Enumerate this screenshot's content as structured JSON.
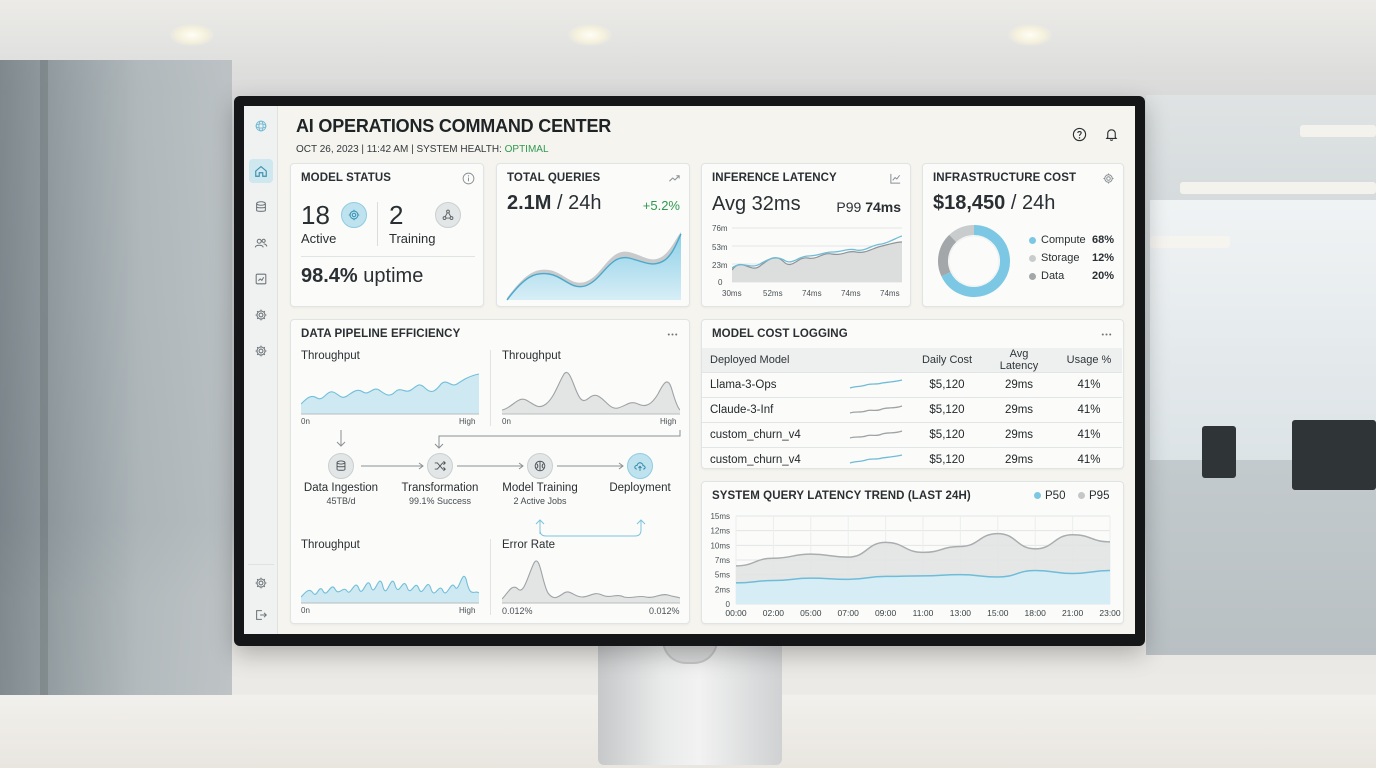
{
  "header": {
    "title": "AI OPERATIONS COMMAND CENTER",
    "subtitle_prefix": "OCT 26, 2023 | 11:42 AM | SYSTEM HEALTH: ",
    "health_status": "OPTIMAL"
  },
  "sidebar": {
    "items": [
      {
        "icon": "home-icon",
        "active": true
      },
      {
        "icon": "database-icon",
        "active": false
      },
      {
        "icon": "users-icon",
        "active": false
      },
      {
        "icon": "report-icon",
        "active": false
      },
      {
        "icon": "gear-icon",
        "active": false
      },
      {
        "icon": "gear-icon",
        "active": false
      }
    ],
    "bottom": [
      {
        "icon": "gear-icon"
      },
      {
        "icon": "logout-icon"
      }
    ]
  },
  "model_status": {
    "title": "MODEL STATUS",
    "active_count": "18",
    "active_label": "Active",
    "training_count": "2",
    "training_label": "Training",
    "uptime_value": "98.4%",
    "uptime_label": "uptime"
  },
  "total_queries": {
    "title": "TOTAL QUERIES",
    "value": "2.1M",
    "period": "/ 24h",
    "change": "+5.2%"
  },
  "inference_latency": {
    "title": "INFERENCE LATENCY",
    "avg": "Avg 32ms",
    "p99_label": "P99",
    "p99_value": "74ms",
    "y_ticks": [
      "76m",
      "53m",
      "23m",
      "0"
    ],
    "x_ticks": [
      "30ms",
      "52ms",
      "74ms",
      "74ms",
      "74ms"
    ]
  },
  "infrastructure_cost": {
    "title": "INFRASTRUCTURE COST",
    "value": "$18,450",
    "period": "/ 24h",
    "legend": [
      {
        "label": "Compute",
        "value": "68%",
        "pct": 68,
        "color": "#7cc8e4"
      },
      {
        "label": "Storage",
        "value": "12%",
        "pct": 12,
        "color": "#c9cccd"
      },
      {
        "label": "Data",
        "value": "20%",
        "pct": 20,
        "color": "#a3a7a9"
      }
    ]
  },
  "pipeline": {
    "title": "DATA PIPELINE EFFICIENCY",
    "mini_charts": [
      {
        "label": "Throughput",
        "x_start": "0n",
        "x_end": "High"
      },
      {
        "label": "Throughput",
        "x_start": "0n",
        "x_end": "High"
      },
      {
        "label": "Throughput",
        "x_start": "0n",
        "x_end": "High"
      },
      {
        "label": "Error Rate",
        "x_start": "0.012%",
        "x_end": "0.012%"
      }
    ],
    "stages": [
      {
        "name": "Data Ingestion",
        "detail": "45TB/d",
        "icon": "database-icon"
      },
      {
        "name": "Transformation",
        "detail": "99.1% Success",
        "icon": "shuffle-icon"
      },
      {
        "name": "Model Training",
        "detail": "2 Active Jobs",
        "icon": "brain-icon"
      },
      {
        "name": "Deployment",
        "detail": "",
        "icon": "cloud-upload-icon"
      }
    ]
  },
  "cost_logging": {
    "title": "MODEL COST LOGGING",
    "columns": [
      "Deployed Model",
      "Daily Cost",
      "Avg Latency",
      "Usage %"
    ],
    "rows": [
      {
        "model": "Llama-3-Ops",
        "cost": "$5,120",
        "latency": "29ms",
        "usage": "41%",
        "spark": "blue"
      },
      {
        "model": "Claude-3-Inf",
        "cost": "$5,120",
        "latency": "29ms",
        "usage": "41%",
        "spark": "gray"
      },
      {
        "model": "custom_churn_v4",
        "cost": "$5,120",
        "latency": "29ms",
        "usage": "41%",
        "spark": "gray"
      },
      {
        "model": "custom_churn_v4",
        "cost": "$5,120",
        "latency": "29ms",
        "usage": "41%",
        "spark": "blue"
      }
    ]
  },
  "latency_trend": {
    "title": "SYSTEM QUERY LATENCY TREND (LAST 24H)",
    "legend": [
      {
        "label": "P50",
        "color": "#7cc8e4"
      },
      {
        "label": "P95",
        "color": "#c4c7c8"
      }
    ]
  },
  "chart_data": {
    "type": "line",
    "title": "SYSTEM QUERY LATENCY TREND (LAST 24H)",
    "x": [
      "00:00",
      "02:00",
      "05:00",
      "07:00",
      "09:00",
      "11:00",
      "13:00",
      "15:00",
      "18:00",
      "21:00",
      "23:00"
    ],
    "y_ticks": [
      "15ms",
      "12ms",
      "10ms",
      "7ms",
      "5ms",
      "2ms",
      "0"
    ],
    "ylim": [
      0,
      15
    ],
    "grid": true,
    "legend_position": "top-right",
    "series": [
      {
        "name": "P50",
        "values": [
          3.6,
          4.0,
          4.4,
          4.2,
          4.7,
          4.8,
          5.0,
          4.6,
          5.7,
          5.2,
          5.7
        ]
      },
      {
        "name": "P95",
        "values": [
          6.5,
          7.8,
          8.5,
          8.0,
          10.5,
          8.8,
          9.8,
          12.0,
          9.4,
          11.8,
          10.6
        ]
      }
    ]
  }
}
